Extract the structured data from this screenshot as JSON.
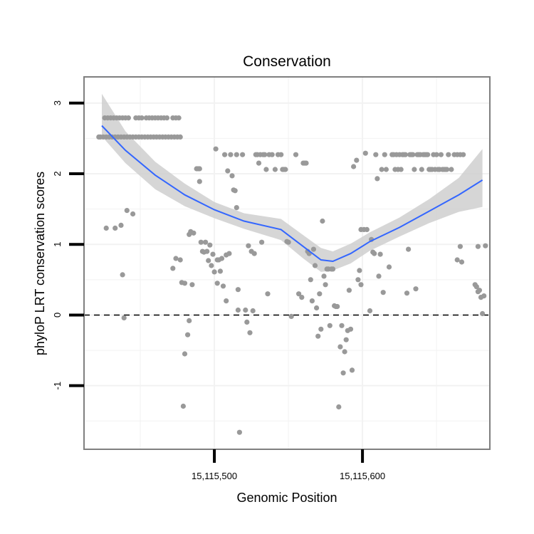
{
  "chart_data": {
    "type": "scatter",
    "title": "Conservation",
    "xlabel": "Genomic Position",
    "ylabel": "phyloP LRT conservation scores",
    "xlim": [
      15115412,
      15115686
    ],
    "ylim": [
      -1.9,
      3.37
    ],
    "x_ticks": [
      15115500,
      15115600
    ],
    "x_tick_labels": [
      "15,115,500",
      "15,115,600"
    ],
    "y_ticks": [
      -1,
      0,
      1,
      2,
      3
    ],
    "y_tick_labels": [
      "-1",
      "0",
      "1",
      "2",
      "3"
    ],
    "grid": true,
    "reference_line": {
      "y": 0,
      "style": "dashed"
    },
    "colors": {
      "points": "#999999",
      "smooth": "#3366FF",
      "ribbon": "#cccccc",
      "panel_border": "#7f7f7f",
      "grid": "#f2f2f2"
    },
    "points": [
      [
        15115422,
        2.52
      ],
      [
        15115423,
        2.52
      ],
      [
        15115425,
        2.52
      ],
      [
        15115427,
        2.52
      ],
      [
        15115429,
        2.52
      ],
      [
        15115431,
        2.52
      ],
      [
        15115433,
        2.52
      ],
      [
        15115435,
        2.52
      ],
      [
        15115437,
        2.52
      ],
      [
        15115439,
        2.52
      ],
      [
        15115441,
        2.52
      ],
      [
        15115443,
        2.52
      ],
      [
        15115445,
        2.52
      ],
      [
        15115447,
        2.52
      ],
      [
        15115449,
        2.52
      ],
      [
        15115451,
        2.52
      ],
      [
        15115453,
        2.52
      ],
      [
        15115455,
        2.52
      ],
      [
        15115457,
        2.52
      ],
      [
        15115459,
        2.52
      ],
      [
        15115461,
        2.52
      ],
      [
        15115463,
        2.52
      ],
      [
        15115465,
        2.52
      ],
      [
        15115467,
        2.52
      ],
      [
        15115469,
        2.52
      ],
      [
        15115471,
        2.52
      ],
      [
        15115473,
        2.52
      ],
      [
        15115475,
        2.52
      ],
      [
        15115477,
        2.52
      ],
      [
        15115426,
        2.79
      ],
      [
        15115428,
        2.79
      ],
      [
        15115430,
        2.79
      ],
      [
        15115432,
        2.79
      ],
      [
        15115434,
        2.79
      ],
      [
        15115436,
        2.79
      ],
      [
        15115438,
        2.79
      ],
      [
        15115440,
        2.79
      ],
      [
        15115442,
        2.79
      ],
      [
        15115447,
        2.79
      ],
      [
        15115449,
        2.79
      ],
      [
        15115451,
        2.79
      ],
      [
        15115454,
        2.79
      ],
      [
        15115456,
        2.79
      ],
      [
        15115458,
        2.79
      ],
      [
        15115460,
        2.79
      ],
      [
        15115462,
        2.79
      ],
      [
        15115464,
        2.79
      ],
      [
        15115466,
        2.79
      ],
      [
        15115468,
        2.79
      ],
      [
        15115472,
        2.79
      ],
      [
        15115474,
        2.79
      ],
      [
        15115476,
        2.79
      ],
      [
        15115427,
        1.23
      ],
      [
        15115433,
        1.23
      ],
      [
        15115437,
        1.27
      ],
      [
        15115441,
        1.48
      ],
      [
        15115445,
        1.43
      ],
      [
        15115438,
        0.57
      ],
      [
        15115439,
        -0.04
      ],
      [
        15115472,
        0.66
      ],
      [
        15115474,
        0.8
      ],
      [
        15115477,
        0.78
      ],
      [
        15115478,
        0.46
      ],
      [
        15115479,
        -1.29
      ],
      [
        15115480,
        0.45
      ],
      [
        15115480,
        -0.55
      ],
      [
        15115482,
        -0.28
      ],
      [
        15115483,
        -0.08
      ],
      [
        15115483,
        1.14
      ],
      [
        15115484,
        1.18
      ],
      [
        15115485,
        0.43
      ],
      [
        15115486,
        1.16
      ],
      [
        15115488,
        2.07
      ],
      [
        15115489,
        2.07
      ],
      [
        15115490,
        2.07
      ],
      [
        15115490,
        1.89
      ],
      [
        15115491,
        1.03
      ],
      [
        15115492,
        0.9
      ],
      [
        15115493,
        0.89
      ],
      [
        15115494,
        1.03
      ],
      [
        15115495,
        0.9
      ],
      [
        15115496,
        0.77
      ],
      [
        15115497,
        0.99
      ],
      [
        15115498,
        0.7
      ],
      [
        15115499,
        0.86
      ],
      [
        15115500,
        0.61
      ],
      [
        15115501,
        2.35
      ],
      [
        15115502,
        0.78
      ],
      [
        15115502,
        0.45
      ],
      [
        15115503,
        0.78
      ],
      [
        15115504,
        0.62
      ],
      [
        15115505,
        0.8
      ],
      [
        15115506,
        0.41
      ],
      [
        15115507,
        2.27
      ],
      [
        15115508,
        0.85
      ],
      [
        15115508,
        0.2
      ],
      [
        15115509,
        2.04
      ],
      [
        15115510,
        0.87
      ],
      [
        15115511,
        2.27
      ],
      [
        15115512,
        1.97
      ],
      [
        15115513,
        1.77
      ],
      [
        15115514,
        1.76
      ],
      [
        15115515,
        2.27
      ],
      [
        15115515,
        1.52
      ],
      [
        15115516,
        0.07
      ],
      [
        15115516,
        0.36
      ],
      [
        15115517,
        -1.66
      ],
      [
        15115519,
        2.27
      ],
      [
        15115521,
        0.07
      ],
      [
        15115522,
        -0.1
      ],
      [
        15115523,
        0.98
      ],
      [
        15115524,
        -0.25
      ],
      [
        15115525,
        0.9
      ],
      [
        15115526,
        0.06
      ],
      [
        15115527,
        0.87
      ],
      [
        15115528,
        2.27
      ],
      [
        15115529,
        2.27
      ],
      [
        15115530,
        2.15
      ],
      [
        15115531,
        2.27
      ],
      [
        15115532,
        1.03
      ],
      [
        15115533,
        2.27
      ],
      [
        15115534,
        2.27
      ],
      [
        15115535,
        2.06
      ],
      [
        15115536,
        0.3
      ],
      [
        15115537,
        2.27
      ],
      [
        15115539,
        2.27
      ],
      [
        15115541,
        2.06
      ],
      [
        15115543,
        2.27
      ],
      [
        15115545,
        2.27
      ],
      [
        15115546,
        2.06
      ],
      [
        15115547,
        2.06
      ],
      [
        15115548,
        2.06
      ],
      [
        15115549,
        1.04
      ],
      [
        15115550,
        1.03
      ],
      [
        15115552,
        -0.02
      ],
      [
        15115555,
        2.27
      ],
      [
        15115557,
        0.3
      ],
      [
        15115559,
        0.25
      ],
      [
        15115560,
        2.15
      ],
      [
        15115561,
        2.15
      ],
      [
        15115562,
        2.15
      ],
      [
        15115563,
        0.9
      ],
      [
        15115564,
        0.87
      ],
      [
        15115565,
        0.5
      ],
      [
        15115566,
        0.2
      ],
      [
        15115567,
        0.93
      ],
      [
        15115568,
        0.7
      ],
      [
        15115569,
        0.1
      ],
      [
        15115570,
        -0.3
      ],
      [
        15115571,
        0.3
      ],
      [
        15115572,
        -0.2
      ],
      [
        15115573,
        1.33
      ],
      [
        15115574,
        0.55
      ],
      [
        15115575,
        0.43
      ],
      [
        15115576,
        0.65
      ],
      [
        15115577,
        0.65
      ],
      [
        15115578,
        -0.15
      ],
      [
        15115579,
        0.65
      ],
      [
        15115580,
        0.65
      ],
      [
        15115581,
        0.13
      ],
      [
        15115582,
        0.12
      ],
      [
        15115583,
        0.12
      ],
      [
        15115584,
        -1.3
      ],
      [
        15115585,
        -0.45
      ],
      [
        15115586,
        -0.15
      ],
      [
        15115587,
        -0.82
      ],
      [
        15115588,
        -0.52
      ],
      [
        15115589,
        -0.35
      ],
      [
        15115590,
        -0.22
      ],
      [
        15115591,
        0.35
      ],
      [
        15115592,
        -0.2
      ],
      [
        15115593,
        -0.78
      ],
      [
        15115594,
        2.1
      ],
      [
        15115596,
        2.19
      ],
      [
        15115597,
        0.5
      ],
      [
        15115598,
        0.63
      ],
      [
        15115599,
        0.43
      ],
      [
        15115599,
        1.21
      ],
      [
        15115601,
        1.21
      ],
      [
        15115602,
        2.29
      ],
      [
        15115603,
        1.21
      ],
      [
        15115605,
        0.06
      ],
      [
        15115606,
        1.07
      ],
      [
        15115607,
        0.89
      ],
      [
        15115608,
        0.87
      ],
      [
        15115609,
        2.27
      ],
      [
        15115610,
        1.93
      ],
      [
        15115611,
        0.55
      ],
      [
        15115612,
        0.86
      ],
      [
        15115613,
        2.06
      ],
      [
        15115614,
        0.32
      ],
      [
        15115615,
        2.27
      ],
      [
        15115616,
        2.06
      ],
      [
        15115618,
        0.68
      ],
      [
        15115620,
        2.27
      ],
      [
        15115621,
        2.27
      ],
      [
        15115622,
        2.06
      ],
      [
        15115623,
        2.27
      ],
      [
        15115624,
        2.06
      ],
      [
        15115625,
        2.27
      ],
      [
        15115626,
        2.06
      ],
      [
        15115627,
        2.27
      ],
      [
        15115628,
        2.27
      ],
      [
        15115629,
        2.27
      ],
      [
        15115630,
        0.31
      ],
      [
        15115631,
        0.93
      ],
      [
        15115632,
        2.27
      ],
      [
        15115633,
        2.27
      ],
      [
        15115634,
        2.27
      ],
      [
        15115635,
        2.06
      ],
      [
        15115636,
        0.37
      ],
      [
        15115637,
        2.27
      ],
      [
        15115638,
        2.27
      ],
      [
        15115639,
        2.27
      ],
      [
        15115640,
        2.06
      ],
      [
        15115641,
        2.27
      ],
      [
        15115642,
        2.27
      ],
      [
        15115643,
        2.27
      ],
      [
        15115644,
        2.27
      ],
      [
        15115645,
        2.06
      ],
      [
        15115646,
        2.06
      ],
      [
        15115647,
        2.06
      ],
      [
        15115648,
        2.27
      ],
      [
        15115649,
        2.06
      ],
      [
        15115650,
        2.27
      ],
      [
        15115651,
        2.06
      ],
      [
        15115652,
        2.06
      ],
      [
        15115653,
        2.27
      ],
      [
        15115654,
        2.06
      ],
      [
        15115655,
        2.06
      ],
      [
        15115656,
        2.06
      ],
      [
        15115657,
        2.06
      ],
      [
        15115658,
        2.27
      ],
      [
        15115660,
        2.06
      ],
      [
        15115662,
        2.27
      ],
      [
        15115664,
        2.27
      ],
      [
        15115666,
        2.27
      ],
      [
        15115668,
        2.27
      ],
      [
        15115664,
        0.78
      ],
      [
        15115666,
        0.97
      ],
      [
        15115667,
        0.75
      ],
      [
        15115676,
        0.43
      ],
      [
        15115677,
        0.4
      ],
      [
        15115678,
        0.97
      ],
      [
        15115678,
        0.33
      ],
      [
        15115679,
        0.35
      ],
      [
        15115680,
        0.25
      ],
      [
        15115681,
        0.02
      ],
      [
        15115682,
        0.27
      ],
      [
        15115683,
        0.98
      ]
    ],
    "smooth": [
      {
        "x": 15115424,
        "y": 2.68,
        "lo": 2.53,
        "hi": 3.13
      },
      {
        "x": 15115440,
        "y": 2.33,
        "lo": 2.15,
        "hi": 2.6
      },
      {
        "x": 15115460,
        "y": 1.98,
        "lo": 1.78,
        "hi": 2.17
      },
      {
        "x": 15115480,
        "y": 1.7,
        "lo": 1.54,
        "hi": 1.86
      },
      {
        "x": 15115500,
        "y": 1.49,
        "lo": 1.37,
        "hi": 1.6
      },
      {
        "x": 15115520,
        "y": 1.33,
        "lo": 1.22,
        "hi": 1.44
      },
      {
        "x": 15115545,
        "y": 1.21,
        "lo": 1.06,
        "hi": 1.36
      },
      {
        "x": 15115560,
        "y": 0.97,
        "lo": 0.8,
        "hi": 1.13
      },
      {
        "x": 15115572,
        "y": 0.78,
        "lo": 0.61,
        "hi": 0.95
      },
      {
        "x": 15115580,
        "y": 0.76,
        "lo": 0.63,
        "hi": 0.9
      },
      {
        "x": 15115592,
        "y": 0.87,
        "lo": 0.73,
        "hi": 1.01
      },
      {
        "x": 15115605,
        "y": 1.04,
        "lo": 0.91,
        "hi": 1.17
      },
      {
        "x": 15115625,
        "y": 1.24,
        "lo": 1.11,
        "hi": 1.38
      },
      {
        "x": 15115645,
        "y": 1.47,
        "lo": 1.3,
        "hi": 1.64
      },
      {
        "x": 15115665,
        "y": 1.7,
        "lo": 1.46,
        "hi": 1.94
      },
      {
        "x": 15115681,
        "y": 1.91,
        "lo": 1.53,
        "hi": 2.35
      }
    ]
  }
}
